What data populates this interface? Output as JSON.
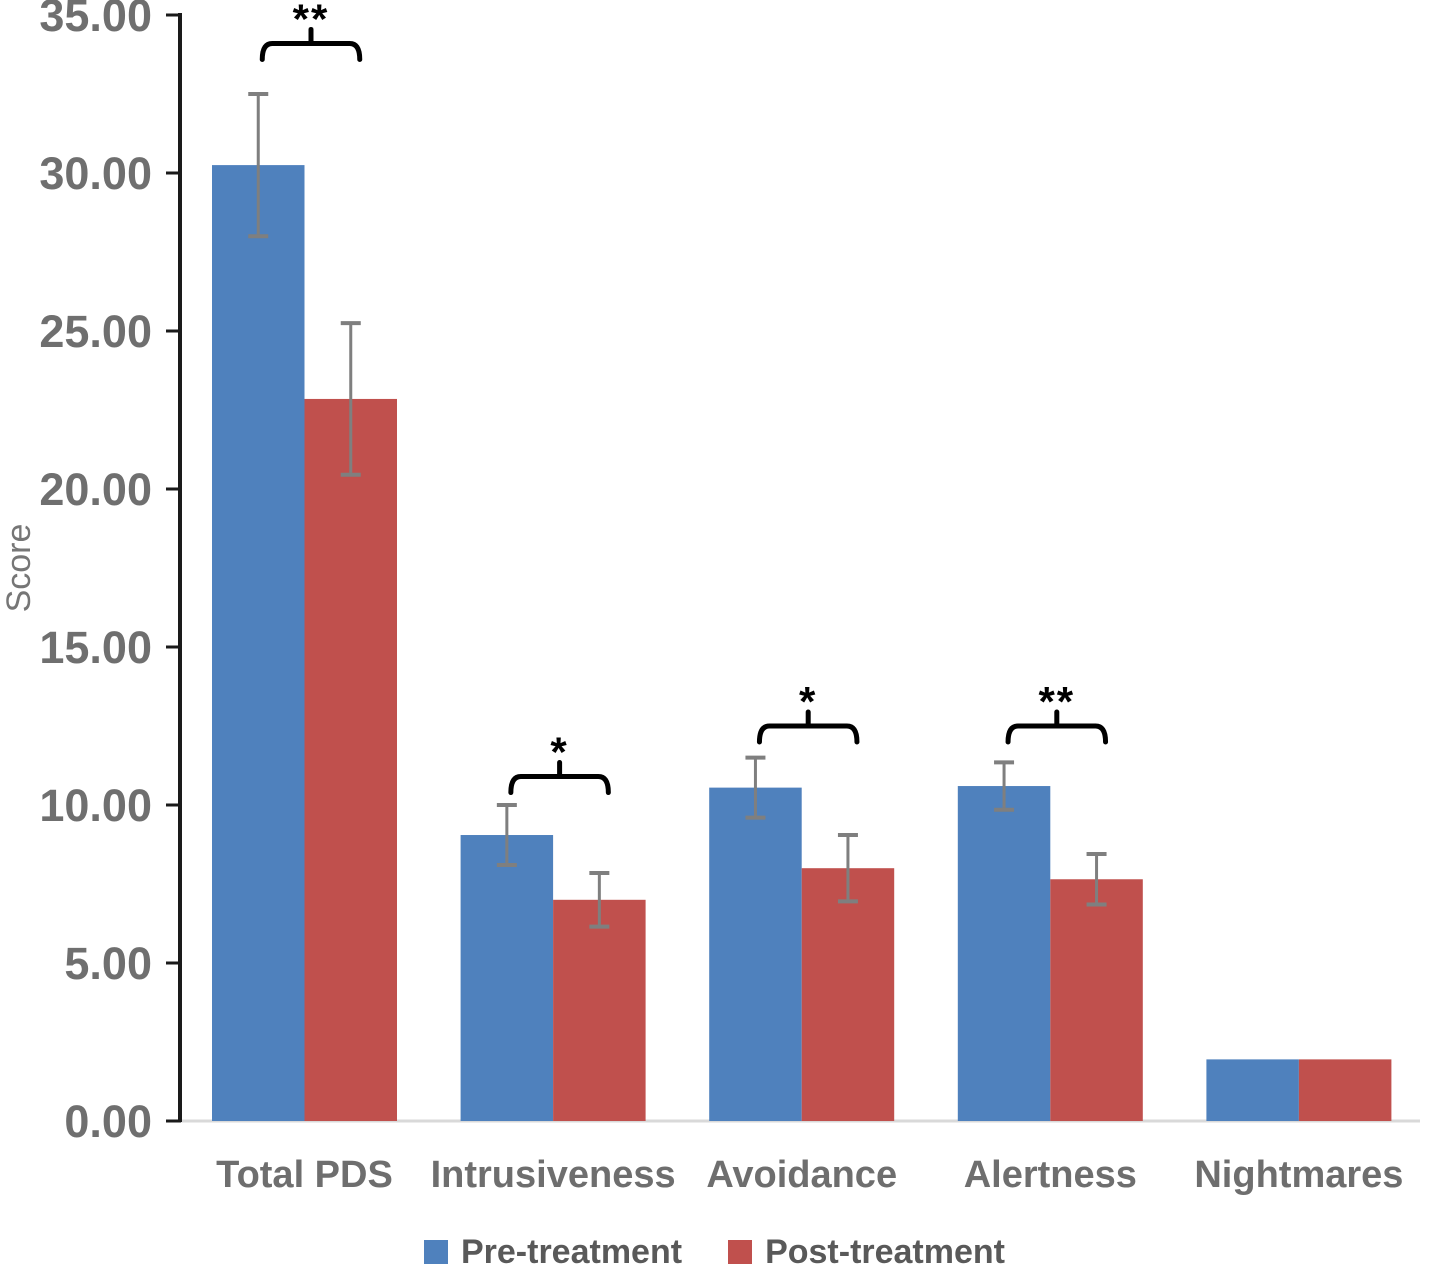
{
  "chart_data": {
    "type": "bar",
    "title": "",
    "xlabel": "",
    "ylabel": "Score",
    "ylim": [
      0,
      35
    ],
    "grid": false,
    "legend_position": "bottom",
    "y_ticks": [
      "35.00",
      "30.00",
      "25.00",
      "20.00",
      "15.00",
      "10.00",
      "5.00",
      "0.00"
    ],
    "categories": [
      "Total PDS",
      "Intrusiveness",
      "Avoidance",
      "Alertness",
      "Nightmares"
    ],
    "series": [
      {
        "name": "Pre-treatment",
        "color": "#4F81BD",
        "values": [
          30.25,
          9.05,
          10.55,
          10.6,
          1.95
        ],
        "errors": [
          2.25,
          0.95,
          0.95,
          0.75,
          0
        ]
      },
      {
        "name": "Post-treatment",
        "color": "#C0504D",
        "values": [
          22.85,
          7.0,
          8.0,
          7.65,
          1.95
        ],
        "errors": [
          2.4,
          0.85,
          1.05,
          0.8,
          0
        ]
      }
    ],
    "annotations": [
      {
        "category": "Total PDS",
        "label": "**",
        "y": 34.1
      },
      {
        "category": "Intrusiveness",
        "label": "*",
        "y": 10.9
      },
      {
        "category": "Avoidance",
        "label": "*",
        "y": 12.5
      },
      {
        "category": "Alertness",
        "label": "**",
        "y": 12.5
      }
    ]
  },
  "legend": {
    "items": [
      {
        "label": "Pre-treatment",
        "color": "#4F81BD"
      },
      {
        "label": "Post-treatment",
        "color": "#C0504D"
      }
    ]
  },
  "colors": {
    "axis": "#1a1a1a",
    "tick_label": "#6F6F6F",
    "category_label": "#6E6E6E",
    "score_label": "#767676",
    "error_bar": "#7F7F7F",
    "baseline": "#D9D9D9",
    "annotation": "#000000",
    "legend_text": "#595959"
  }
}
